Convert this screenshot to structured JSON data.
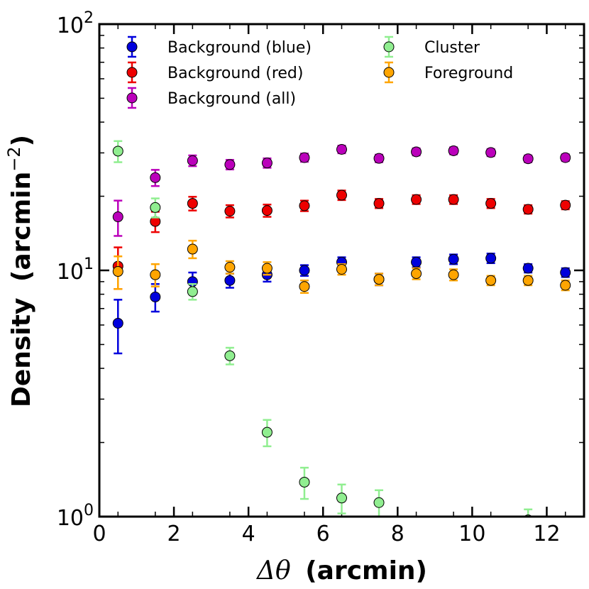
{
  "chart_data": {
    "type": "scatter",
    "title": "",
    "xlabel_symbol": "Δθ",
    "xlabel_unit": "(arcmin)",
    "ylabel": "Density",
    "ylabel_unit_base": "(arcmin",
    "ylabel_unit_exp": "−2",
    "ylabel_unit_close": ")",
    "xlim": [
      0,
      13
    ],
    "ylim": [
      1,
      100
    ],
    "yscale": "log",
    "x_ticks": [
      {
        "value": 0,
        "label": "0"
      },
      {
        "value": 2,
        "label": "2"
      },
      {
        "value": 4,
        "label": "4"
      },
      {
        "value": 6,
        "label": "6"
      },
      {
        "value": 8,
        "label": "8"
      },
      {
        "value": 10,
        "label": "10"
      },
      {
        "value": 12,
        "label": "12"
      }
    ],
    "y_ticks": [
      {
        "value": 1,
        "base": "10",
        "exp": "0"
      },
      {
        "value": 10,
        "base": "10",
        "exp": "1"
      },
      {
        "value": 100,
        "base": "10",
        "exp": "2"
      }
    ],
    "legend_location": "top",
    "series": [
      {
        "name": "Background (blue)",
        "color": "#0000dd",
        "x": [
          0.5,
          1.5,
          2.5,
          3.5,
          4.5,
          5.5,
          6.5,
          7.5,
          8.5,
          9.5,
          10.5,
          11.5,
          12.5
        ],
        "y": [
          6.1,
          7.8,
          9.0,
          9.1,
          9.6,
          10.0,
          10.8,
          9.2,
          10.8,
          11.1,
          11.2,
          10.2,
          9.8
        ],
        "err": [
          1.5,
          1.0,
          0.8,
          0.6,
          0.6,
          0.5,
          0.5,
          0.5,
          0.5,
          0.5,
          0.5,
          0.4,
          0.4
        ]
      },
      {
        "name": "Background (red)",
        "color": "#ee0000",
        "x": [
          0.5,
          1.5,
          2.5,
          3.5,
          4.5,
          5.5,
          6.5,
          7.5,
          8.5,
          9.5,
          10.5,
          11.5,
          12.5
        ],
        "y": [
          10.4,
          15.8,
          18.7,
          17.4,
          17.5,
          18.3,
          20.2,
          18.7,
          19.4,
          19.4,
          18.7,
          17.7,
          18.4
        ],
        "err": [
          2.0,
          1.5,
          1.2,
          1.0,
          1.0,
          0.9,
          0.9,
          0.8,
          0.8,
          0.8,
          0.8,
          0.7,
          0.7
        ]
      },
      {
        "name": "Background (all)",
        "color": "#bb00bb",
        "x": [
          0.5,
          1.5,
          2.5,
          3.5,
          4.5,
          5.5,
          6.5,
          7.5,
          8.5,
          9.5,
          10.5,
          11.5,
          12.5
        ],
        "y": [
          16.5,
          23.8,
          27.9,
          26.9,
          27.3,
          28.7,
          31.0,
          28.5,
          30.3,
          30.6,
          30.1,
          28.4,
          28.7
        ],
        "err": [
          2.7,
          1.8,
          1.4,
          1.2,
          1.2,
          1.1,
          1.1,
          1.0,
          1.0,
          1.0,
          1.0,
          0.9,
          0.9
        ]
      },
      {
        "name": "Cluster",
        "color": "#90ee90",
        "x": [
          0.5,
          1.5,
          2.5,
          3.5,
          4.5,
          5.5,
          6.5,
          7.5,
          11.5
        ],
        "y": [
          30.5,
          18.0,
          8.2,
          4.5,
          2.2,
          1.38,
          1.19,
          1.14,
          0.97
        ],
        "err": [
          3.0,
          1.6,
          0.6,
          0.35,
          0.27,
          0.2,
          0.16,
          0.14,
          0.1
        ]
      },
      {
        "name": "Foreground",
        "color": "#ffa500",
        "x": [
          0.5,
          1.5,
          2.5,
          3.5,
          4.5,
          5.5,
          6.5,
          7.5,
          8.5,
          9.5,
          10.5,
          11.5,
          12.5
        ],
        "y": [
          9.9,
          9.6,
          12.2,
          10.3,
          10.2,
          8.6,
          10.1,
          9.2,
          9.7,
          9.6,
          9.1,
          9.1,
          8.7
        ],
        "err": [
          1.5,
          1.0,
          1.0,
          0.6,
          0.6,
          0.5,
          0.5,
          0.5,
          0.5,
          0.5,
          0.4,
          0.4,
          0.4
        ]
      }
    ],
    "legend": {
      "columns": [
        [
          "Background (blue)",
          "Background (red)",
          "Background (all)"
        ],
        [
          "Cluster",
          "Foreground"
        ]
      ]
    }
  }
}
